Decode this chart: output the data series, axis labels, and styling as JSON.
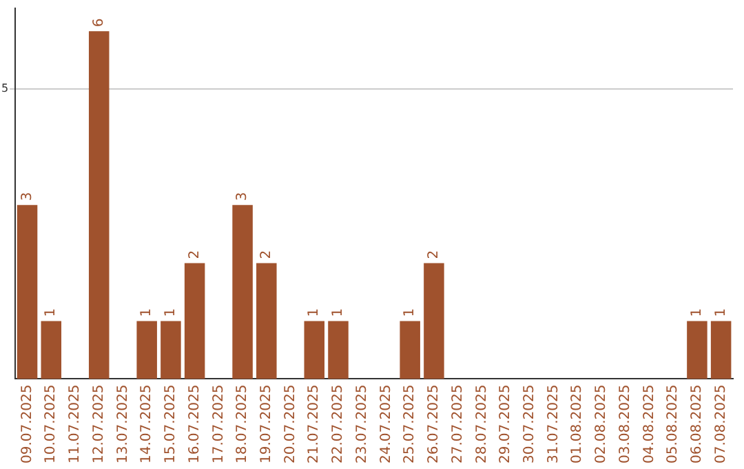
{
  "chart_data": {
    "type": "bar",
    "categories": [
      "09.07.2025",
      "10.07.2025",
      "11.07.2025",
      "12.07.2025",
      "13.07.2025",
      "14.07.2025",
      "15.07.2025",
      "16.07.2025",
      "17.07.2025",
      "18.07.2025",
      "19.07.2025",
      "20.07.2025",
      "21.07.2025",
      "22.07.2025",
      "23.07.2025",
      "24.07.2025",
      "25.07.2025",
      "26.07.2025",
      "27.07.2025",
      "28.07.2025",
      "29.07.2025",
      "30.07.2025",
      "31.07.2025",
      "01.08.2025",
      "02.08.2025",
      "03.08.2025",
      "04.08.2025",
      "05.08.2025",
      "06.08.2025",
      "07.08.2025"
    ],
    "values": [
      3,
      1,
      0,
      6,
      0,
      1,
      1,
      2,
      0,
      3,
      2,
      0,
      1,
      1,
      0,
      0,
      1,
      2,
      0,
      0,
      0,
      0,
      0,
      0,
      0,
      0,
      0,
      0,
      1,
      1
    ],
    "value_labels": [
      "3",
      "1",
      null,
      "6",
      null,
      "1",
      "1",
      "2",
      null,
      "3",
      "2",
      null,
      "1",
      "1",
      null,
      null,
      "1",
      "2",
      null,
      null,
      null,
      null,
      null,
      null,
      null,
      null,
      null,
      null,
      "1",
      "1"
    ],
    "color": "#a0522d",
    "ylim": [
      0,
      6.4
    ],
    "yticks": [
      5
    ],
    "grid": "y"
  }
}
